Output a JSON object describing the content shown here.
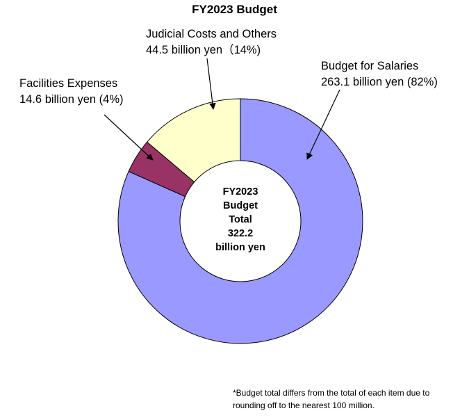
{
  "chart_data": {
    "type": "pie",
    "variant": "donut",
    "title": "FY2023 Budget",
    "slices": [
      {
        "name": "Budget for Salaries",
        "value": 263.1,
        "percent_label": "263.1 billion yen (82%)",
        "color": "#9999FF"
      },
      {
        "name": "Facilities Expenses",
        "value": 14.6,
        "percent_label": "14.6 billion yen (4%)",
        "color": "#993366"
      },
      {
        "name": "Judicial Costs and Others",
        "value": 44.5,
        "percent_label": "44.5 billion yen（14%)",
        "color": "#FFFFCC"
      }
    ],
    "center_label": [
      "FY2023",
      "Budget",
      "Total",
      "322.2",
      "billion yen"
    ],
    "footnote": [
      "*Budget total differs from the total of each item due to",
      "rounding off to the nearest 100 million."
    ]
  }
}
